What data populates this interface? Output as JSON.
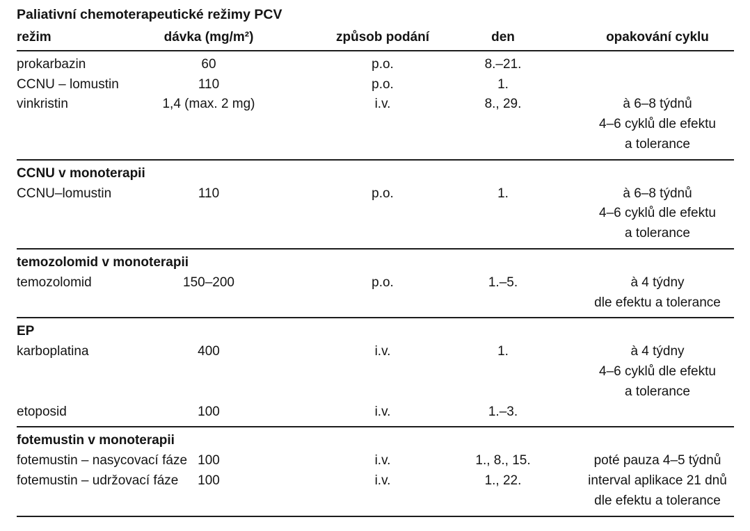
{
  "page": {
    "background_color": "#ffffff",
    "text_color": "#141414",
    "rule_color": "#1c1c1c"
  },
  "table": {
    "title": "Paliativní chemoterapeutické režimy PCV",
    "columns": [
      {
        "key": "regimen",
        "label": "režim",
        "align": "left"
      },
      {
        "key": "dose",
        "label": "dávka (mg/m²)",
        "align": "center"
      },
      {
        "key": "route",
        "label": "způsob podání",
        "align": "center"
      },
      {
        "key": "day",
        "label": "den",
        "align": "center"
      },
      {
        "key": "cycle",
        "label": "opakování cyklu",
        "align": "center"
      }
    ],
    "sections": [
      {
        "header": "",
        "rows": [
          [
            "prokarbazin",
            "60",
            "p.o.",
            "8.–21.",
            ""
          ],
          [
            "CCNU – lomustin",
            "110",
            "p.o.",
            "1.",
            ""
          ],
          [
            "vinkristin",
            "1,4 (max. 2 mg)",
            "i.v.",
            "8., 29.",
            "à 6–8 týdnů"
          ],
          [
            "",
            "",
            "",
            "",
            "4–6 cyklů dle efektu"
          ],
          [
            "",
            "",
            "",
            "",
            "a tolerance"
          ]
        ]
      },
      {
        "header": "CCNU v monoterapii",
        "rows": [
          [
            "CCNU–lomustin",
            "110",
            "p.o.",
            "1.",
            "à 6–8 týdnů"
          ],
          [
            "",
            "",
            "",
            "",
            "4–6 cyklů dle efektu"
          ],
          [
            "",
            "",
            "",
            "",
            "a tolerance"
          ]
        ]
      },
      {
        "header": "temozolomid v monoterapii",
        "rows": [
          [
            "temozolomid",
            "150–200",
            "p.o.",
            "1.–5.",
            "à 4 týdny"
          ],
          [
            "",
            "",
            "",
            "",
            "dle efektu a tolerance"
          ]
        ]
      },
      {
        "header": "EP",
        "rows": [
          [
            "karboplatina",
            "400",
            "i.v.",
            "1.",
            "à 4 týdny"
          ],
          [
            "",
            "",
            "",
            "",
            "4–6 cyklů dle efektu"
          ],
          [
            "",
            "",
            "",
            "",
            "a tolerance"
          ],
          [
            "etoposid",
            "100",
            "i.v.",
            "1.–3.",
            ""
          ]
        ]
      },
      {
        "header": "fotemustin v monoterapii",
        "rows": [
          [
            "fotemustin – nasycovací fáze",
            "100",
            "i.v.",
            "1., 8., 15.",
            "poté pauza 4–5 týdnů"
          ],
          [
            "fotemustin – udržovací fáze",
            "100",
            "i.v.",
            "1., 22.",
            "interval aplikace 21 dnů"
          ],
          [
            "",
            "",
            "",
            "",
            "dle efektu a tolerance"
          ]
        ]
      }
    ]
  }
}
